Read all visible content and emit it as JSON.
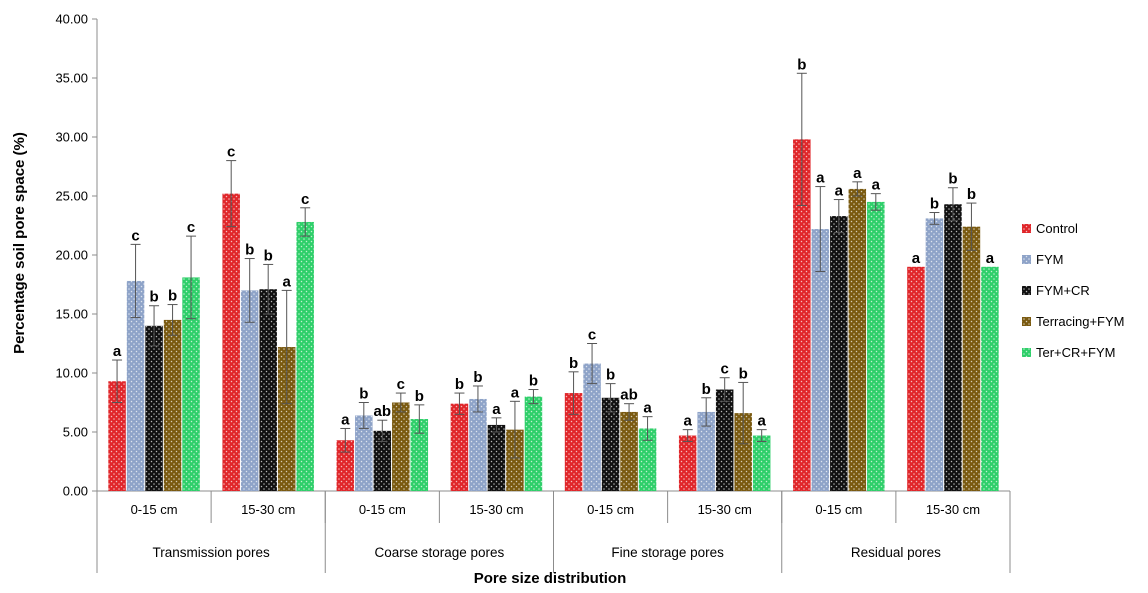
{
  "chart_data": {
    "type": "bar",
    "title": "",
    "xlabel": "Pore size distribution",
    "ylabel": "Percentage soil pore space (%)",
    "ylim": [
      0,
      40
    ],
    "yticks": [
      "0.00",
      "5.00",
      "10.00",
      "15.00",
      "20.00",
      "25.00",
      "30.00",
      "35.00",
      "40.00"
    ],
    "grid": false,
    "legend_position": "right",
    "groups": [
      "Transmission pores",
      "Coarse storage pores",
      "Fine storage pores",
      "Residual pores"
    ],
    "categories": [
      "0-15 cm",
      "15-30 cm",
      "0-15 cm",
      "15-30 cm",
      "0-15 cm",
      "15-30 cm",
      "0-15 cm",
      "15-30 cm"
    ],
    "series": [
      {
        "name": "Control",
        "color": "#e0262a",
        "values": [
          9.3,
          25.2,
          4.3,
          7.4,
          8.3,
          4.7,
          29.8,
          19.0
        ],
        "errors": [
          1.8,
          2.8,
          1.0,
          0.9,
          1.8,
          0.5,
          5.6,
          0.0
        ],
        "letters": [
          "a",
          "c",
          "a",
          "b",
          "b",
          "a",
          "b",
          "a"
        ]
      },
      {
        "name": "FYM",
        "color": "#8ea3c8",
        "values": [
          17.8,
          17.0,
          6.4,
          7.8,
          10.8,
          6.7,
          22.2,
          23.1
        ],
        "errors": [
          3.1,
          2.7,
          1.1,
          1.1,
          1.7,
          1.2,
          3.6,
          0.5
        ],
        "letters": [
          "c",
          "b",
          "b",
          "b",
          "c",
          "b",
          "a",
          "b"
        ]
      },
      {
        "name": "FYM+CR",
        "color": "#111111",
        "values": [
          14.0,
          17.1,
          5.1,
          5.6,
          7.9,
          8.6,
          23.3,
          24.3
        ],
        "errors": [
          1.7,
          2.1,
          0.9,
          0.6,
          1.2,
          1.0,
          1.4,
          1.4
        ],
        "letters": [
          "b",
          "b",
          "ab",
          "a",
          "b",
          "c",
          "a",
          "b"
        ]
      },
      {
        "name": "Terracing+FYM",
        "color": "#7a5a10",
        "values": [
          14.5,
          12.2,
          7.5,
          5.2,
          6.7,
          6.6,
          25.6,
          22.4
        ],
        "errors": [
          1.3,
          4.8,
          0.8,
          2.4,
          0.7,
          2.6,
          0.6,
          2.0
        ],
        "letters": [
          "b",
          "a",
          "c",
          "a",
          "ab",
          "b",
          "a",
          "b"
        ]
      },
      {
        "name": "Ter+CR+FYM",
        "color": "#2fcf6a",
        "values": [
          18.1,
          22.8,
          6.1,
          8.0,
          5.3,
          4.7,
          24.5,
          19.0
        ],
        "errors": [
          3.5,
          1.2,
          1.2,
          0.6,
          1.0,
          0.5,
          0.7,
          0.0
        ],
        "letters": [
          "c",
          "c",
          "b",
          "b",
          "a",
          "a",
          "a",
          "a"
        ]
      }
    ]
  }
}
